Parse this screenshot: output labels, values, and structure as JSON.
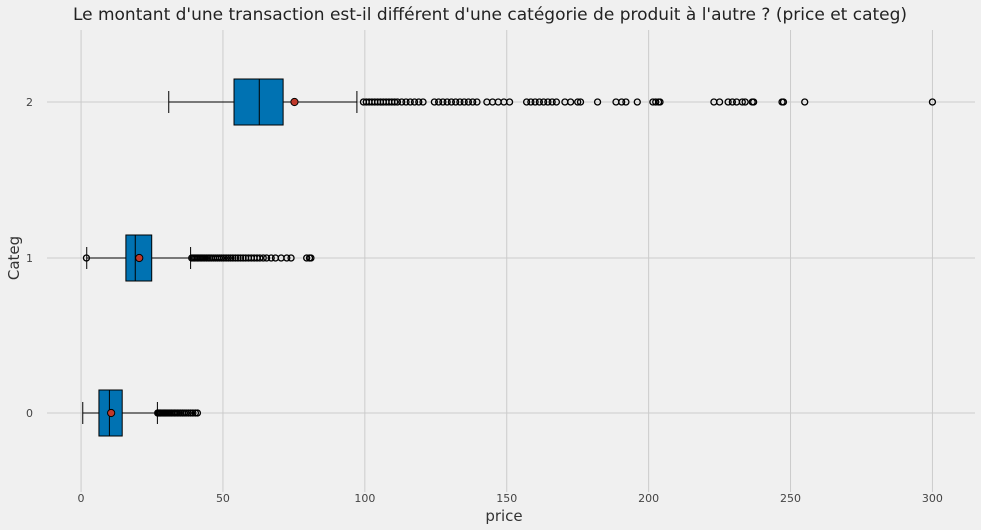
{
  "chart_data": {
    "type": "boxplot",
    "orientation": "horizontal",
    "title": "Le montant d'une transaction est-il différent d'une catégorie de produit à l'autre ? (price et categ)",
    "xlabel": "price",
    "ylabel": "Categ",
    "xlim": [
      -12,
      315
    ],
    "x_ticks": [
      0,
      50,
      100,
      150,
      200,
      250,
      300
    ],
    "grid": true,
    "colors": {
      "box_fill": "#0072b2",
      "mean_marker": "#c0392b",
      "outlier_edge": "#000000",
      "grid": "#cbcbcb",
      "background": "#f0f0f0"
    },
    "categories": [
      {
        "label": "0",
        "whisker_low": 0.6,
        "q1": 6.3,
        "median": 9.99,
        "mean": 10.6,
        "q3": 14.5,
        "whisker_high": 26.9,
        "outliers": [
          27,
          27.3,
          27.6,
          27.9,
          28.2,
          28.6,
          29,
          29.4,
          29.8,
          30.2,
          30.6,
          31,
          31.4,
          31.9,
          32.4,
          32.9,
          33.4,
          33.9,
          34.5,
          35.1,
          35.7,
          36.3,
          37,
          37.8,
          38.6,
          39.4,
          40.3,
          41
        ]
      },
      {
        "label": "1",
        "whisker_low": 2.0,
        "q1": 15.8,
        "median": 19.1,
        "mean": 20.5,
        "q3": 24.9,
        "whisker_high": 38.6,
        "outliers": [
          1.9,
          39,
          39.5,
          40,
          40.5,
          41,
          41.5,
          42,
          42.5,
          43,
          43.6,
          44.2,
          44.8,
          45.4,
          46,
          46.7,
          47.4,
          48.1,
          48.8,
          49.5,
          50.3,
          51.1,
          51.9,
          52.7,
          53.5,
          54.4,
          55.3,
          56.2,
          57.1,
          58,
          59,
          60,
          61,
          62,
          63,
          64.2,
          65.4,
          67,
          68.5,
          70.5,
          72.5,
          74,
          79.5,
          80.5,
          81
        ]
      },
      {
        "label": "2",
        "whisker_low": 30.9,
        "q1": 53.9,
        "median": 62.8,
        "mean": 75.2,
        "q3": 71.2,
        "whisker_high": 97.2,
        "outliers": [
          99.5,
          100.5,
          101.5,
          102.5,
          103.5,
          104.5,
          105.5,
          106.5,
          107.5,
          108.5,
          109.5,
          110.5,
          111.5,
          113,
          114.5,
          116,
          117.5,
          119,
          120.5,
          124.5,
          126,
          127.5,
          129,
          130.5,
          132,
          133.5,
          135,
          136.5,
          138,
          139.5,
          143,
          145,
          147,
          149,
          151,
          157,
          158.5,
          160,
          161.5,
          163,
          164.5,
          166,
          167.5,
          170.5,
          172.5,
          175,
          176,
          182,
          188.5,
          190.5,
          192,
          196,
          201.5,
          202.5,
          203.5,
          204,
          223,
          225,
          228,
          229.5,
          231,
          233,
          234,
          236.5,
          237,
          247,
          247.5,
          255,
          300
        ]
      }
    ]
  }
}
